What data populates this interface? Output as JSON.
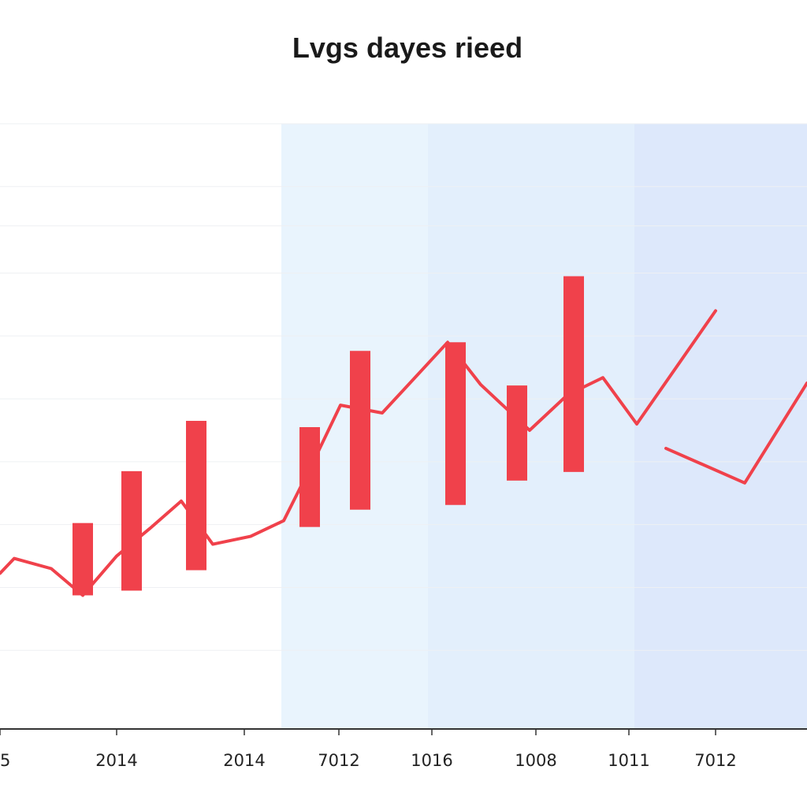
{
  "chart_data": {
    "type": "line",
    "title": "Lvgs dayes rieed",
    "xlabel": "",
    "ylabel": "",
    "x_tick_labels": [
      "5",
      "2014",
      "2014",
      "7012",
      "1016",
      "1008",
      "1011",
      "7012"
    ],
    "x_tick_values": [
      0,
      148,
      310,
      430,
      548,
      680,
      798,
      908
    ],
    "x_range": [
      0,
      1024
    ],
    "y_range": [
      0,
      770
    ],
    "y_grid_values": [
      100,
      180,
      260,
      340,
      420,
      500,
      580,
      640,
      690,
      770
    ],
    "grid": true,
    "colors": {
      "series": "#f0414b",
      "band_1": "#e9f4fd",
      "band_2": "#e3effc",
      "band_3": "#dde8fb",
      "axis": "#333333",
      "grid": "#eef0f3"
    },
    "shaded_bands": [
      {
        "x_start": 357,
        "x_end": 543,
        "color_key": "band_1"
      },
      {
        "x_start": 543,
        "x_end": 805,
        "color_key": "band_2"
      },
      {
        "x_start": 805,
        "x_end": 1024,
        "color_key": "band_3"
      }
    ],
    "series": [
      {
        "type": "line",
        "segments": [
          [
            [
              0,
              198
            ],
            [
              18,
              217
            ],
            [
              65,
              204
            ],
            [
              105,
              170
            ],
            [
              148,
              220
            ],
            [
              190,
              255
            ],
            [
              230,
              290
            ],
            [
              270,
              235
            ],
            [
              318,
              245
            ],
            [
              360,
              265
            ],
            [
              400,
              345
            ],
            [
              432,
              412
            ],
            [
              485,
              402
            ],
            [
              568,
              492
            ],
            [
              610,
              438
            ],
            [
              672,
              380
            ],
            [
              720,
              425
            ],
            [
              765,
              447
            ],
            [
              808,
              388
            ],
            [
              908,
              532
            ]
          ],
          [
            [
              845,
              357
            ],
            [
              945,
              313
            ],
            [
              1024,
              440
            ]
          ]
        ]
      },
      {
        "type": "range-bar",
        "bars": [
          {
            "x": 105,
            "low": 170,
            "high": 262
          },
          {
            "x": 167,
            "low": 176,
            "high": 328
          },
          {
            "x": 249,
            "low": 202,
            "high": 392
          },
          {
            "x": 393,
            "low": 257,
            "high": 384
          },
          {
            "x": 457,
            "low": 279,
            "high": 481
          },
          {
            "x": 578,
            "low": 285,
            "high": 492
          },
          {
            "x": 656,
            "low": 316,
            "high": 437
          },
          {
            "x": 728,
            "low": 327,
            "high": 576
          }
        ]
      }
    ]
  }
}
